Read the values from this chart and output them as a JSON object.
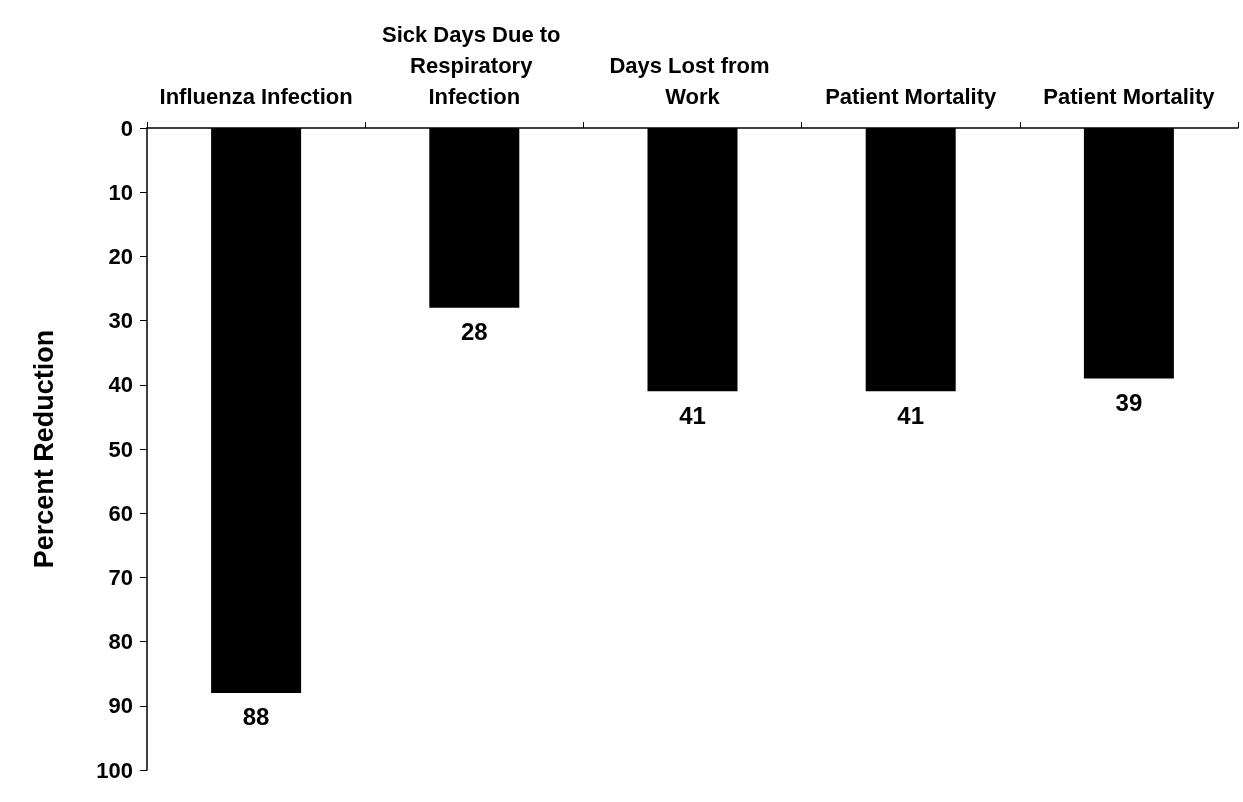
{
  "chart_data": {
    "type": "bar",
    "ylabel": "Percent Reduction",
    "categories": [
      "Influenza Infection",
      "Sick Days Due to Respiratory Infection",
      "Days Lost from Work",
      "Patient Mortality",
      "Patient Mortality"
    ],
    "values": [
      88,
      28,
      41,
      41,
      39
    ],
    "color": "#000000",
    "ylim": [
      100,
      0
    ],
    "yticks": [
      0,
      10,
      20,
      30,
      40,
      50,
      60,
      70,
      80,
      90,
      100
    ],
    "data_labels": true
  }
}
